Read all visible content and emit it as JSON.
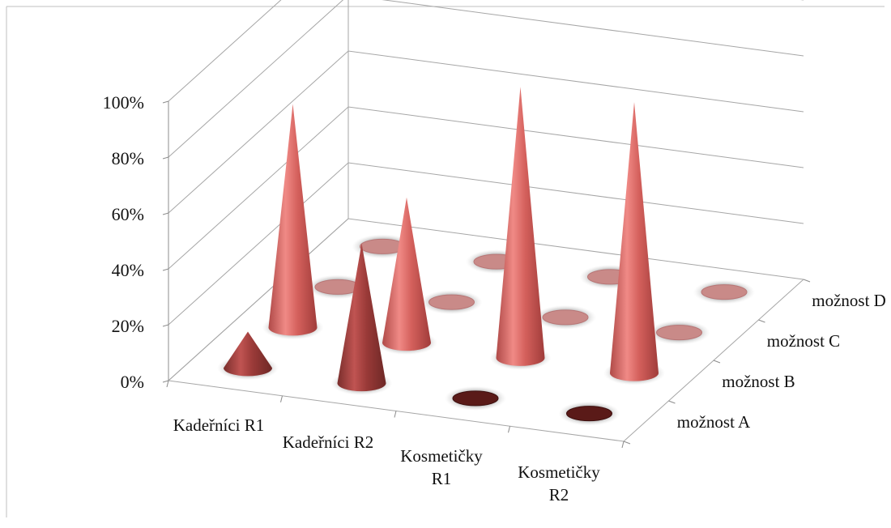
{
  "chart_data": {
    "type": "3d-cone",
    "categories": [
      "Kadeřníci R1",
      "Kadeřníci R2",
      "Kosmetičky R1",
      "Kosmetičky R2"
    ],
    "category_lines": [
      [
        "Kadeřníci R1"
      ],
      [
        "Kadeřníci R2"
      ],
      [
        "Kosmetičky",
        "R1"
      ],
      [
        "Kosmetičky",
        "R2"
      ]
    ],
    "series": [
      {
        "name": "možnost A",
        "values": [
          0.13,
          0.5,
          0.0,
          0.0
        ],
        "color": "#8b3a3a"
      },
      {
        "name": "možnost B",
        "values": [
          0.8,
          0.52,
          0.97,
          0.97
        ],
        "color": "#c9605e"
      },
      {
        "name": "možnost C",
        "values": [
          0.0,
          0.0,
          0.0,
          0.0
        ],
        "color": "#c9605e"
      },
      {
        "name": "možnost D",
        "values": [
          0.0,
          0.0,
          0.0,
          0.0
        ],
        "color": "#c9605e"
      }
    ],
    "y_ticks": [
      "0%",
      "20%",
      "40%",
      "60%",
      "80%",
      "100%"
    ],
    "ylim": [
      0,
      1
    ],
    "grid": true,
    "legend": "none"
  }
}
